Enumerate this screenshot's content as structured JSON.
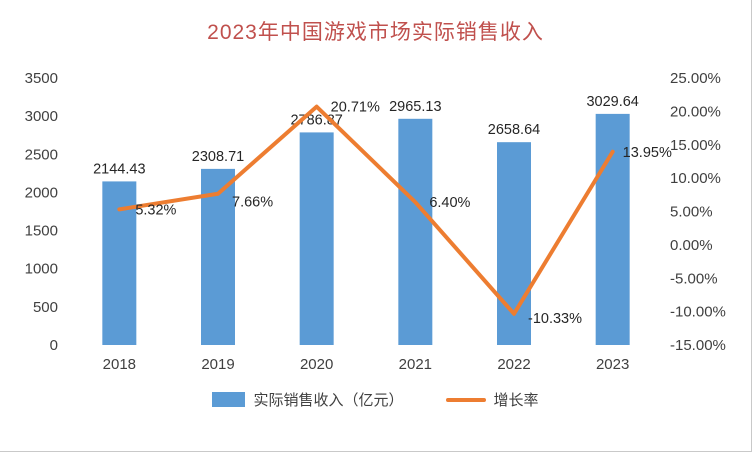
{
  "chart_data": {
    "type": "combo-bar-line",
    "title": "2023年中国游戏市场实际销售收入",
    "categories": [
      "2018",
      "2019",
      "2020",
      "2021",
      "2022",
      "2023"
    ],
    "series": [
      {
        "name": "实际销售收入（亿元）",
        "type": "bar",
        "axis": "left",
        "color": "#5B9BD5",
        "values": [
          2144.43,
          2308.71,
          2786.87,
          2965.13,
          2658.64,
          3029.64
        ],
        "labels": [
          "2144.43",
          "2308.71",
          "2786.87",
          "2965.13",
          "2658.64",
          "3029.64"
        ]
      },
      {
        "name": "增长率",
        "type": "line",
        "axis": "right",
        "color": "#ED7D31",
        "values": [
          5.32,
          7.66,
          20.71,
          6.4,
          -10.33,
          13.95
        ],
        "labels": [
          "5.32%",
          "7.66%",
          "20.71%",
          "6.40%",
          "-10.33%",
          "13.95%"
        ]
      }
    ],
    "left_axis": {
      "min": 0,
      "max": 3500,
      "step": 500,
      "ticks": [
        "3500",
        "3000",
        "2500",
        "2000",
        "1500",
        "1000",
        "500",
        "0"
      ]
    },
    "right_axis": {
      "min": -15,
      "max": 25,
      "step": 5,
      "ticks": [
        "25.00%",
        "20.00%",
        "15.00%",
        "10.00%",
        "5.00%",
        "0.00%",
        "-5.00%",
        "-10.00%",
        "-15.00%"
      ]
    },
    "grid": false,
    "legend_position": "bottom",
    "colors": {
      "title": "#C0504D",
      "axis_text": "#404040",
      "data_label": "#262626",
      "bar": "#5B9BD5",
      "line": "#ED7D31"
    }
  }
}
